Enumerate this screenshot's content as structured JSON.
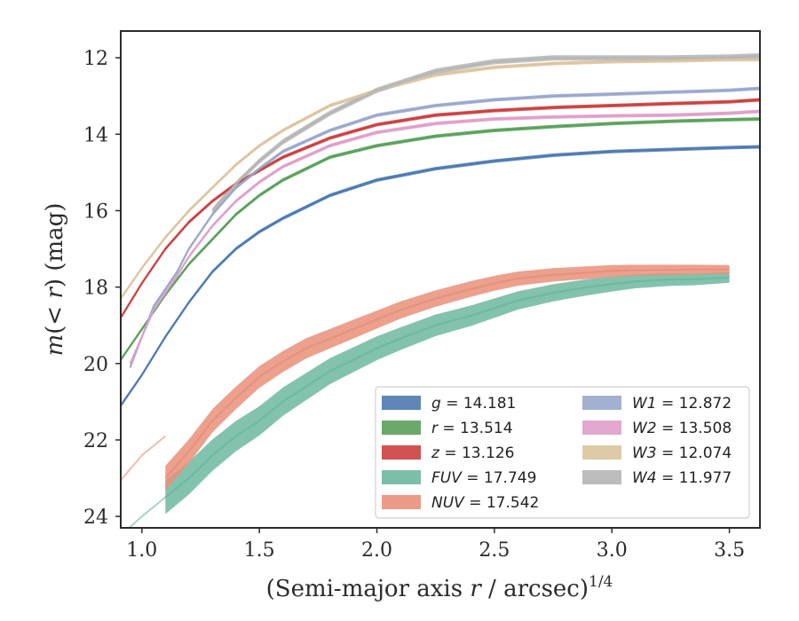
{
  "chart_data": {
    "type": "line",
    "xlabel_main": "(Semi-major axis ",
    "xlabel_r": "r",
    "xlabel_unit": " / arcsec)",
    "xlabel_exp": "1/4",
    "ylabel_m": "m",
    "ylabel_paren": "(< ",
    "ylabel_r": "r",
    "ylabel_rest": ") (mag)",
    "xlim": [
      0.91,
      3.63
    ],
    "ylim": [
      24.3,
      11.3
    ],
    "y_inverted": true,
    "xticks": [
      1.0,
      1.5,
      2.0,
      2.5,
      3.0,
      3.5
    ],
    "xtick_labels": [
      "1.0",
      "1.5",
      "2.0",
      "2.5",
      "3.0",
      "3.5"
    ],
    "yticks": [
      12,
      14,
      16,
      18,
      20,
      22,
      24
    ],
    "ytick_labels": [
      "12",
      "14",
      "16",
      "18",
      "20",
      "22",
      "24"
    ],
    "grid": false,
    "legend_position": "lower-right",
    "series": [
      {
        "name": "g",
        "value": "14.181",
        "color": "#4c7ab0",
        "x": [
          0.91,
          1.0,
          1.1,
          1.2,
          1.3,
          1.4,
          1.5,
          1.6,
          1.8,
          2.0,
          2.25,
          2.5,
          2.75,
          3.0,
          3.25,
          3.5,
          3.63
        ],
        "y": [
          21.1,
          20.3,
          19.3,
          18.4,
          17.6,
          17.0,
          16.55,
          16.2,
          15.6,
          15.2,
          14.9,
          14.7,
          14.55,
          14.45,
          14.4,
          14.35,
          14.33
        ],
        "band_x": [
          0.91,
          3.63
        ],
        "band_w": 4
      },
      {
        "name": "r",
        "value": "13.514",
        "color": "#5aa05a",
        "x": [
          0.91,
          1.0,
          1.1,
          1.2,
          1.3,
          1.4,
          1.5,
          1.6,
          1.8,
          2.0,
          2.25,
          2.5,
          2.75,
          3.0,
          3.25,
          3.5,
          3.63
        ],
        "y": [
          19.9,
          19.1,
          18.2,
          17.4,
          16.75,
          16.1,
          15.6,
          15.2,
          14.6,
          14.3,
          14.05,
          13.9,
          13.8,
          13.72,
          13.66,
          13.62,
          13.6
        ],
        "band_w": 4
      },
      {
        "name": "z",
        "value": "13.126",
        "color": "#cc3f3f",
        "x": [
          0.91,
          1.0,
          1.1,
          1.2,
          1.3,
          1.4,
          1.5,
          1.6,
          1.8,
          2.0,
          2.25,
          2.5,
          2.75,
          3.0,
          3.25,
          3.5,
          3.63
        ],
        "y": [
          18.8,
          17.9,
          17.0,
          16.3,
          15.75,
          15.3,
          14.95,
          14.6,
          14.1,
          13.75,
          13.5,
          13.38,
          13.3,
          13.25,
          13.2,
          13.15,
          13.1
        ],
        "band_w": 4
      },
      {
        "name": "FUV",
        "value": "17.749",
        "color": "#6db8a0",
        "x": [
          1.1,
          1.2,
          1.3,
          1.4,
          1.5,
          1.6,
          1.7,
          1.8,
          1.9,
          2.0,
          2.1,
          2.25,
          2.4,
          2.5,
          2.6,
          2.75,
          2.9,
          3.0,
          3.1,
          3.25,
          3.35,
          3.5
        ],
        "y": [
          23.5,
          23.0,
          22.4,
          21.9,
          21.5,
          21.0,
          20.6,
          20.2,
          19.9,
          19.6,
          19.35,
          19.0,
          18.75,
          18.55,
          18.35,
          18.15,
          18.0,
          17.92,
          17.85,
          17.8,
          17.8,
          17.75
        ],
        "band_w0": 38,
        "band_w1": 12
      },
      {
        "name": "NUV",
        "value": "17.542",
        "color": "#e8907a",
        "x": [
          1.1,
          1.2,
          1.3,
          1.4,
          1.5,
          1.6,
          1.7,
          1.8,
          1.9,
          2.0,
          2.1,
          2.25,
          2.4,
          2.5,
          2.6,
          2.75,
          2.9,
          3.0,
          3.1,
          3.25,
          3.35,
          3.5
        ],
        "y": [
          23.0,
          22.3,
          21.5,
          20.9,
          20.35,
          19.95,
          19.6,
          19.35,
          19.1,
          18.85,
          18.6,
          18.3,
          18.05,
          17.9,
          17.78,
          17.68,
          17.62,
          17.58,
          17.56,
          17.55,
          17.54,
          17.54
        ],
        "band_w0": 28,
        "band_w1": 10
      },
      {
        "name": "W1",
        "value": "12.872",
        "color": "#99a8cc",
        "x": [
          0.95,
          1.05,
          1.15,
          1.2,
          1.3,
          1.4,
          1.5,
          1.6,
          1.8,
          2.0,
          2.25,
          2.5,
          2.75,
          3.0,
          3.25,
          3.5,
          3.63
        ],
        "y": [
          20.1,
          18.5,
          17.6,
          17.0,
          16.1,
          15.4,
          14.9,
          14.45,
          13.9,
          13.5,
          13.25,
          13.1,
          13.0,
          12.95,
          12.9,
          12.85,
          12.8
        ],
        "band_w": 4
      },
      {
        "name": "W2",
        "value": "13.508",
        "color": "#df9fc9",
        "x": [
          0.95,
          1.05,
          1.15,
          1.2,
          1.3,
          1.4,
          1.5,
          1.6,
          1.8,
          2.0,
          2.25,
          2.5,
          2.75,
          3.0,
          3.25,
          3.5,
          3.63
        ],
        "y": [
          20.0,
          18.6,
          17.7,
          17.2,
          16.4,
          15.75,
          15.25,
          14.85,
          14.3,
          13.95,
          13.72,
          13.6,
          13.55,
          13.52,
          13.5,
          13.45,
          13.4
        ],
        "band_w": 4
      },
      {
        "name": "W3",
        "value": "12.074",
        "color": "#dcc49f",
        "x": [
          0.91,
          1.0,
          1.1,
          1.2,
          1.3,
          1.4,
          1.5,
          1.6,
          1.8,
          2.0,
          2.25,
          2.5,
          2.75,
          3.0,
          3.25,
          3.5,
          3.63
        ],
        "y": [
          18.3,
          17.5,
          16.7,
          16.0,
          15.4,
          14.8,
          14.3,
          13.9,
          13.25,
          12.85,
          12.45,
          12.25,
          12.15,
          12.1,
          12.08,
          12.05,
          12.05
        ],
        "band_w": 4
      },
      {
        "name": "W4",
        "value": "11.977",
        "color": "#b5b5b5",
        "x": [
          1.3,
          1.4,
          1.5,
          1.6,
          1.8,
          2.0,
          2.25,
          2.5,
          2.75,
          3.0,
          3.25,
          3.5,
          3.63
        ],
        "y": [
          16.0,
          15.3,
          14.7,
          14.2,
          13.45,
          12.85,
          12.35,
          12.1,
          12.0,
          12.0,
          12.0,
          11.98,
          11.95
        ],
        "band_w": 6
      }
    ]
  }
}
